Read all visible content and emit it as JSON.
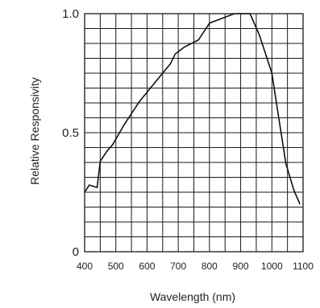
{
  "chart_data": {
    "type": "line",
    "title": "",
    "xlabel": "Wavelength (nm)",
    "ylabel": "Relative Responsivity",
    "xlim": [
      400,
      1100
    ],
    "ylim": [
      0,
      1.0
    ],
    "x_tick_labels": [
      "400",
      "500",
      "600",
      "700",
      "800",
      "900",
      "1000",
      "1100"
    ],
    "x_tick_values": [
      400,
      500,
      600,
      700,
      800,
      900,
      1000,
      1100
    ],
    "y_tick_labels": [
      "0",
      "0.5",
      "1.0"
    ],
    "y_tick_values": [
      0,
      0.5,
      1.0
    ],
    "grid": true,
    "grid_x_step": 50,
    "grid_y_step": 0.0625,
    "series": [
      {
        "color": "#111111",
        "x": [
          400,
          415,
          440,
          450,
          470,
          490,
          525,
          575,
          625,
          675,
          690,
          720,
          765,
          800,
          840,
          880,
          910,
          920,
          930,
          960,
          1000,
          1020,
          1045,
          1070,
          1090
        ],
        "y": [
          0.25,
          0.28,
          0.27,
          0.38,
          0.42,
          0.45,
          0.53,
          0.63,
          0.71,
          0.79,
          0.83,
          0.86,
          0.89,
          0.96,
          0.98,
          1.0,
          1.0,
          1.0,
          1.0,
          0.91,
          0.75,
          0.58,
          0.37,
          0.26,
          0.2
        ]
      }
    ]
  }
}
